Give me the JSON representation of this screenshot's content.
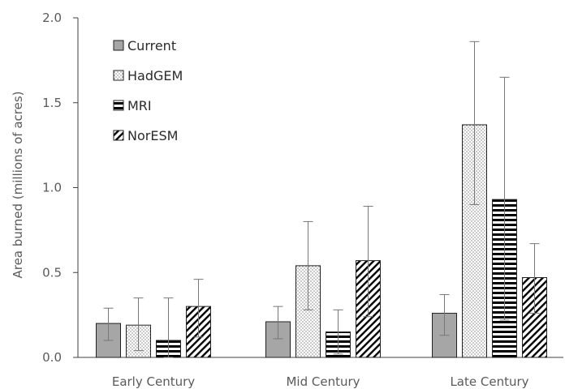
{
  "chart_data": {
    "type": "bar",
    "title": "",
    "xlabel": "",
    "ylabel": "Area burned (millions of acres)",
    "ylim": [
      0,
      2.0
    ],
    "yticks": [
      "0.0",
      "0.5",
      "1.0",
      "1.5",
      "2.0"
    ],
    "ytick_values": [
      0,
      0.5,
      1.0,
      1.5,
      2.0
    ],
    "grid": false,
    "legend_position": "top-left",
    "categories": [
      "Early Century",
      "Mid Century",
      "Late Century"
    ],
    "series": [
      {
        "name": "Current",
        "pattern": "solid-gray",
        "color": "#a6a6a6",
        "values": [
          0.2,
          0.21,
          0.26
        ],
        "error_upper": [
          0.29,
          0.3,
          0.37
        ],
        "error_lower": [
          0.1,
          0.11,
          0.13
        ]
      },
      {
        "name": "HadGEM",
        "pattern": "dots",
        "color": "#ffffff",
        "values": [
          0.19,
          0.54,
          1.37
        ],
        "error_upper": [
          0.35,
          0.8,
          1.86
        ],
        "error_lower": [
          0.04,
          0.28,
          0.9
        ]
      },
      {
        "name": "MRI",
        "pattern": "horizontal-stripes",
        "color": "#000000",
        "values": [
          0.1,
          0.15,
          0.93
        ],
        "error_upper": [
          0.35,
          0.28,
          1.65
        ],
        "error_lower": [
          0.0,
          0.02,
          0.22
        ]
      },
      {
        "name": "NorESM",
        "pattern": "diagonal-stripes",
        "color": "#000000",
        "values": [
          0.3,
          0.57,
          0.47
        ],
        "error_upper": [
          0.46,
          0.89,
          0.67
        ],
        "error_lower": [
          0.12,
          0.24,
          0.26
        ]
      }
    ]
  }
}
